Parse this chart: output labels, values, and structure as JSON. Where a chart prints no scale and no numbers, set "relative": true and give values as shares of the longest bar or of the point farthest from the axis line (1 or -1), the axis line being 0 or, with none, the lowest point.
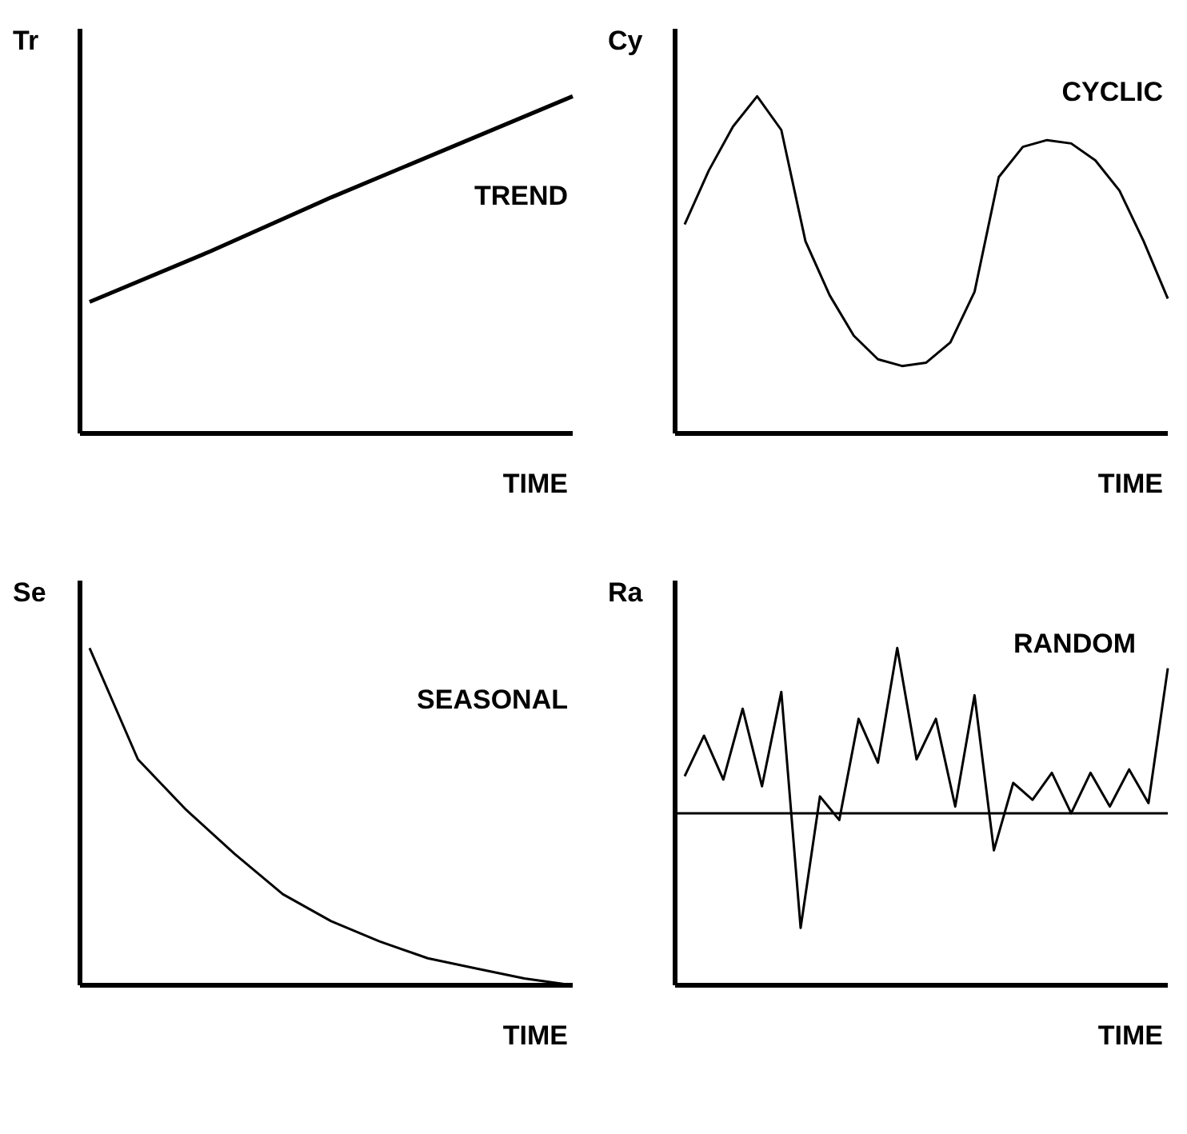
{
  "chart_data": [
    {
      "type": "line",
      "relative": true,
      "ylabel": "Tr",
      "xlabel": "TIME",
      "annotations": [
        "TREND"
      ],
      "tick_labels": false,
      "categories": [
        null,
        null,
        null,
        null,
        null
      ],
      "series": [
        {
          "color": "#000000",
          "values": [
            0.39,
            0.54,
            0.7,
            0.85,
            1
          ]
        }
      ]
    },
    {
      "type": "line",
      "relative": true,
      "ylabel": "Cy",
      "xlabel": "TIME",
      "annotations": [
        "CYCLIC"
      ],
      "tick_labels": false,
      "categories": [
        null,
        null,
        null,
        null,
        null,
        null,
        null,
        null,
        null,
        null,
        null,
        null,
        null,
        null,
        null,
        null,
        null,
        null,
        null,
        null,
        null
      ],
      "series": [
        {
          "color": "#000000",
          "values": [
            0.62,
            0.78,
            0.91,
            1,
            0.9,
            0.57,
            0.41,
            0.29,
            0.22,
            0.2,
            0.21,
            0.27,
            0.42,
            0.76,
            0.85,
            0.87,
            0.86,
            0.81,
            0.72,
            0.57,
            0.4
          ]
        }
      ]
    },
    {
      "type": "line",
      "relative": true,
      "ylabel": "Se",
      "xlabel": "TIME",
      "annotations": [
        "SEASONAL"
      ],
      "tick_labels": false,
      "categories": [
        null,
        null,
        null,
        null,
        null,
        null,
        null,
        null,
        null,
        null,
        null
      ],
      "series": [
        {
          "color": "#000000",
          "values": [
            1,
            0.67,
            0.52,
            0.39,
            0.27,
            0.19,
            0.13,
            0.08,
            0.05,
            0.02,
            0
          ]
        }
      ]
    },
    {
      "type": "line",
      "relative": true,
      "ylabel": "Ra",
      "xlabel": "TIME",
      "annotations": [
        "RANDOM"
      ],
      "tick_labels": false,
      "categories": [
        null,
        null,
        null,
        null,
        null,
        null,
        null,
        null,
        null,
        null,
        null,
        null,
        null,
        null,
        null,
        null,
        null,
        null,
        null,
        null,
        null,
        null,
        null,
        null,
        null,
        null
      ],
      "ref_lines": [
        {
          "axis": "y",
          "value": 0.51,
          "color": "#000000"
        }
      ],
      "series": [
        {
          "color": "#000000",
          "values": [
            0.62,
            0.74,
            0.61,
            0.82,
            0.59,
            0.87,
            0.17,
            0.56,
            0.49,
            0.79,
            0.66,
            1,
            0.67,
            0.79,
            0.53,
            0.86,
            0.4,
            0.6,
            0.55,
            0.63,
            0.51,
            0.63,
            0.53,
            0.64,
            0.54,
            0.94
          ]
        }
      ]
    }
  ]
}
